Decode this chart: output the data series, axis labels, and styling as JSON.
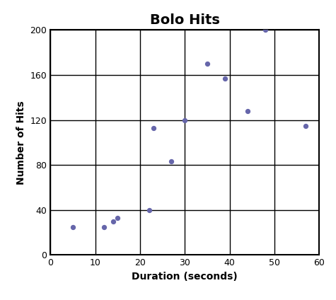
{
  "title": "Bolo Hits",
  "xlabel": "Duration (seconds)",
  "ylabel": "Number of Hits",
  "xlim": [
    0,
    60
  ],
  "ylim": [
    0,
    200
  ],
  "xticks": [
    0,
    10,
    20,
    30,
    40,
    50,
    60
  ],
  "yticks": [
    0,
    40,
    80,
    120,
    160,
    200
  ],
  "x": [
    5,
    12,
    14,
    15,
    22,
    23,
    27,
    30,
    35,
    39,
    44,
    48,
    57
  ],
  "y": [
    25,
    25,
    30,
    33,
    40,
    113,
    83,
    120,
    170,
    157,
    128,
    200,
    115
  ],
  "dot_color": "#6666aa",
  "dot_size": 18,
  "background_color": "#ffffff",
  "grid_color": "#000000",
  "title_fontsize": 14,
  "label_fontsize": 10,
  "tick_labelsize": 9
}
